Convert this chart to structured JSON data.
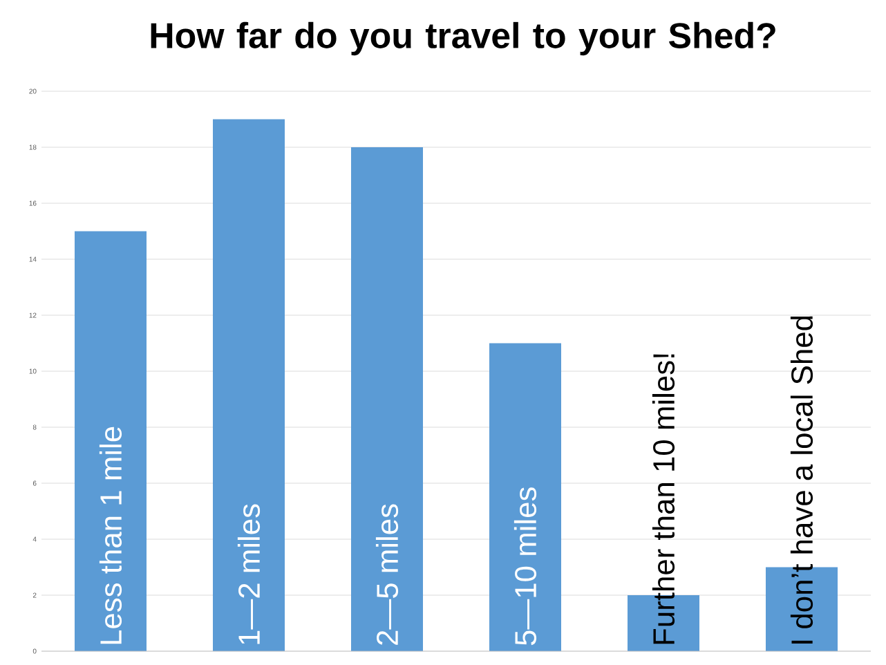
{
  "chart_data": {
    "type": "bar",
    "title": "How far do you travel to your Shed?",
    "categories": [
      "Less than 1 mile",
      "1—2 miles",
      "2—5 miles",
      "5—10 miles",
      "Further than 10 miles!",
      "I don’t have a local Shed"
    ],
    "values": [
      15,
      19,
      18,
      11,
      2,
      3
    ],
    "color": "#5b9bd5",
    "ylim": [
      0,
      20
    ],
    "yticks": [
      0,
      2,
      4,
      6,
      8,
      10,
      12,
      14,
      16,
      18,
      20
    ],
    "grid": "y"
  }
}
